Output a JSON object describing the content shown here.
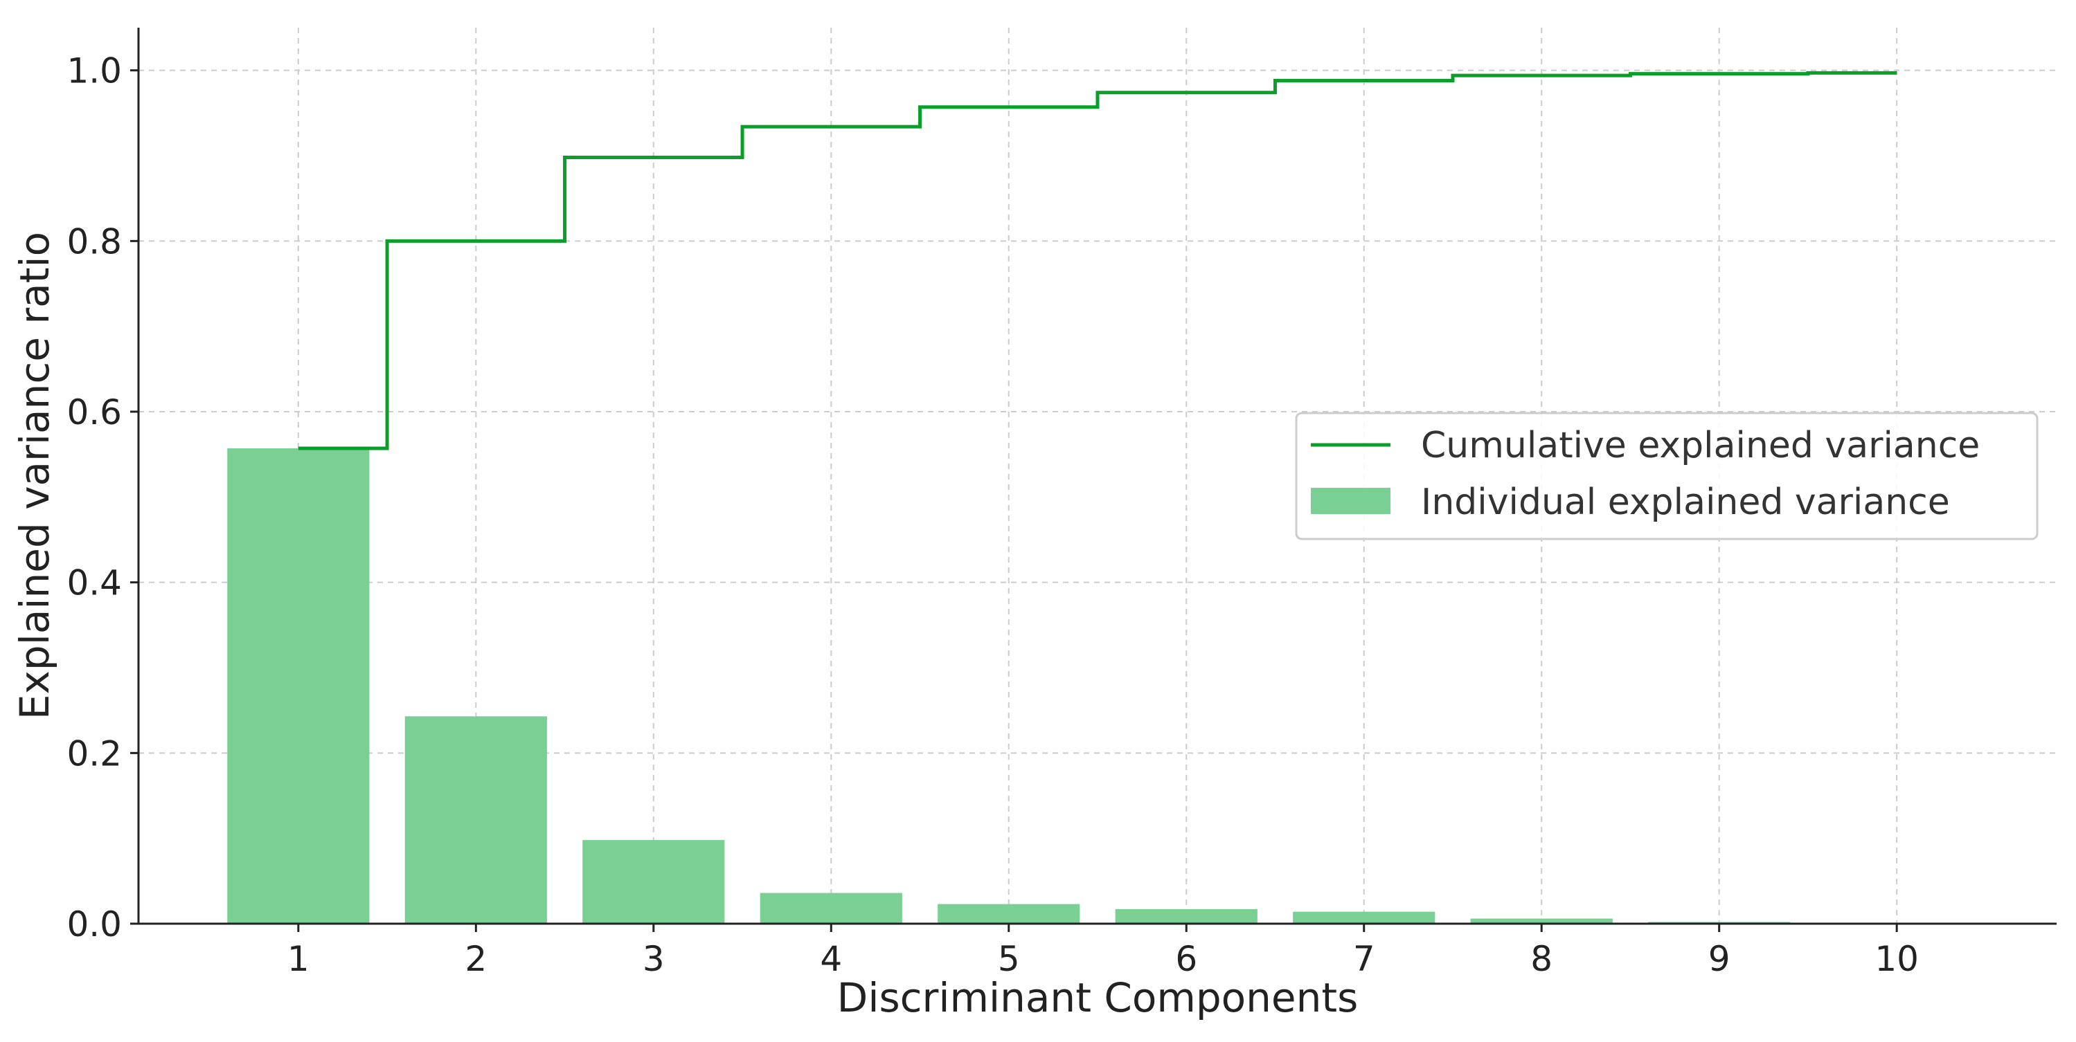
{
  "chart_data": {
    "type": "bar",
    "categories": [
      "1",
      "2",
      "3",
      "4",
      "5",
      "6",
      "7",
      "8",
      "9",
      "10"
    ],
    "series": [
      {
        "name": "Individual explained variance",
        "kind": "bar",
        "values": [
          0.557,
          0.243,
          0.098,
          0.036,
          0.023,
          0.017,
          0.014,
          0.006,
          0.002,
          0.001
        ]
      },
      {
        "name": "Cumulative explained variance",
        "kind": "step",
        "values": [
          0.557,
          0.8,
          0.898,
          0.934,
          0.957,
          0.974,
          0.988,
          0.994,
          0.996,
          0.997
        ]
      }
    ],
    "title": "",
    "xlabel": "Discriminant Components",
    "ylabel": "Explained variance ratio",
    "ylim": [
      0,
      1.05
    ],
    "xlim": [
      0.1,
      10.9
    ],
    "yticks": [
      "0.0",
      "0.2",
      "0.4",
      "0.6",
      "0.8",
      "1.0"
    ],
    "yticks_values": [
      0,
      0.2,
      0.4,
      0.6,
      0.8,
      1.0
    ],
    "grid": true,
    "legend_position": "center-right",
    "colors": {
      "bar": "#79cf94",
      "step": "#0a9e2a",
      "grid": "#cccccc",
      "axis": "#222222",
      "legend_border": "#cccccc"
    }
  }
}
